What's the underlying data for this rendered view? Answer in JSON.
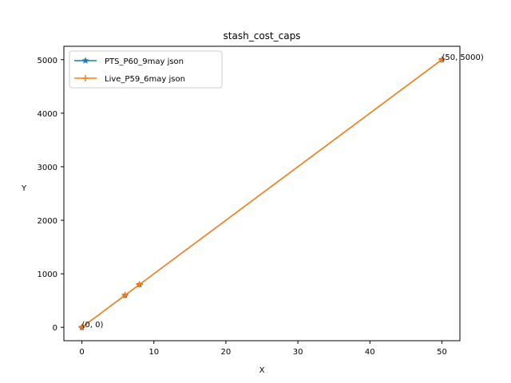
{
  "chart_data": {
    "type": "line",
    "title": "stash_cost_caps",
    "xlabel": "X",
    "ylabel": "Y",
    "xlim": [
      -2.5,
      52.5
    ],
    "ylim": [
      -250,
      5250
    ],
    "xticks": [
      0,
      10,
      20,
      30,
      40,
      50
    ],
    "yticks": [
      0,
      1000,
      2000,
      3000,
      4000,
      5000
    ],
    "grid": false,
    "legend_position": "top-left",
    "series": [
      {
        "name": "PTS_P60_9may json",
        "color": "#1f77b4",
        "marker": "star",
        "x": [
          0,
          6,
          8,
          50
        ],
        "y": [
          0,
          600,
          800,
          5000
        ]
      },
      {
        "name": "Live_P59_6may json",
        "color": "#ff7f0e",
        "marker": "plus",
        "x": [
          0,
          6,
          8,
          50
        ],
        "y": [
          0,
          600,
          800,
          5000
        ]
      }
    ],
    "annotations": [
      {
        "text": "(0, 0)",
        "x": 0,
        "y": 0
      },
      {
        "text": "(50, 5000)",
        "x": 50,
        "y": 5000
      }
    ]
  }
}
